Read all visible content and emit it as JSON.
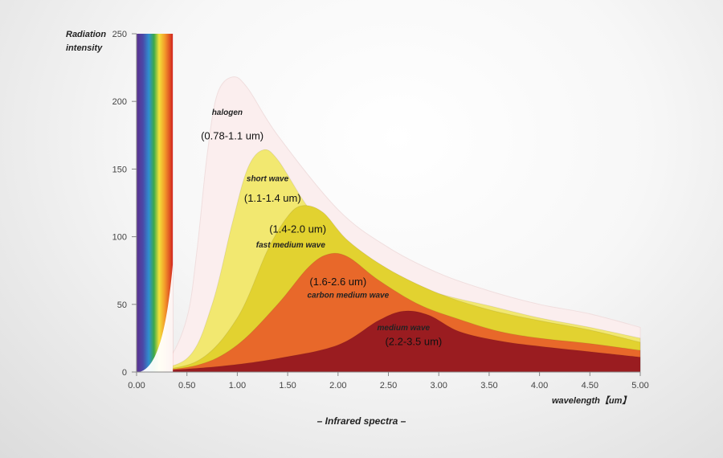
{
  "chart_data": {
    "type": "area",
    "title": "",
    "caption": "– Infrared spectra –",
    "xlabel": "wavelength【um】",
    "ylabel_line1": "Radiation",
    "ylabel_line2": "intensity",
    "xlim": [
      0,
      5
    ],
    "ylim": [
      0,
      250
    ],
    "xticks": [
      "0.00",
      "0.50",
      "1.00",
      "1.50",
      "2.00",
      "2.50",
      "3.00",
      "3.50",
      "4.00",
      "4.50",
      "5.00"
    ],
    "yticks": [
      "0",
      "50",
      "100",
      "150",
      "200",
      "250"
    ],
    "visible_spectrum": {
      "x_start": 0.0,
      "x_end": 0.36
    },
    "series": [
      {
        "label": "halogen",
        "range": "(0.78-1.1 um)",
        "color": "#fbeeee",
        "points": [
          [
            0,
            0
          ],
          [
            0.3,
            8
          ],
          [
            0.5,
            40
          ],
          [
            0.6,
            90
          ],
          [
            0.7,
            160
          ],
          [
            0.8,
            205
          ],
          [
            0.95,
            218
          ],
          [
            1.1,
            210
          ],
          [
            1.4,
            175
          ],
          [
            2.0,
            120
          ],
          [
            2.5,
            92
          ],
          [
            3.0,
            73
          ],
          [
            3.5,
            60
          ],
          [
            4.0,
            50
          ],
          [
            4.5,
            43
          ],
          [
            5.0,
            33
          ]
        ]
      },
      {
        "label": "short wave",
        "range": "(1.1-1.4 um)",
        "color": "#f2e870",
        "points": [
          [
            0,
            0
          ],
          [
            0.5,
            10
          ],
          [
            0.75,
            50
          ],
          [
            0.95,
            110
          ],
          [
            1.1,
            150
          ],
          [
            1.25,
            164
          ],
          [
            1.4,
            157
          ],
          [
            1.7,
            122
          ],
          [
            2.0,
            97
          ],
          [
            2.5,
            72
          ],
          [
            3.0,
            58
          ],
          [
            3.5,
            49
          ],
          [
            4.0,
            40
          ],
          [
            4.5,
            33
          ],
          [
            5.0,
            25
          ]
        ]
      },
      {
        "label": "fast medium wave",
        "range": "(1.4-2.0 um)",
        "color": "#e2d230",
        "points": [
          [
            0,
            0
          ],
          [
            0.6,
            8
          ],
          [
            1.0,
            40
          ],
          [
            1.3,
            90
          ],
          [
            1.5,
            115
          ],
          [
            1.65,
            123
          ],
          [
            1.85,
            118
          ],
          [
            2.1,
            97
          ],
          [
            2.5,
            76
          ],
          [
            3.0,
            58
          ],
          [
            3.5,
            46
          ],
          [
            4.0,
            38
          ],
          [
            4.5,
            31
          ],
          [
            5.0,
            22
          ]
        ]
      },
      {
        "label": "carbon medium wave",
        "range": "(1.6-2.6 um)",
        "color": "#e8682a",
        "points": [
          [
            0,
            0
          ],
          [
            0.6,
            5
          ],
          [
            1.0,
            20
          ],
          [
            1.4,
            50
          ],
          [
            1.7,
            77
          ],
          [
            1.9,
            87
          ],
          [
            2.1,
            85
          ],
          [
            2.4,
            68
          ],
          [
            2.8,
            50
          ],
          [
            3.2,
            39
          ],
          [
            3.6,
            30
          ],
          [
            4.0,
            25
          ],
          [
            4.5,
            21
          ],
          [
            5.0,
            16
          ]
        ]
      },
      {
        "label": "medium wave",
        "range": "(2.2-3.5 um)",
        "color": "#9a1c20",
        "points": [
          [
            0,
            0
          ],
          [
            0.8,
            4
          ],
          [
            1.4,
            10
          ],
          [
            2.0,
            20
          ],
          [
            2.4,
            38
          ],
          [
            2.65,
            45
          ],
          [
            2.9,
            42
          ],
          [
            3.2,
            30
          ],
          [
            3.6,
            23
          ],
          [
            4.0,
            19
          ],
          [
            4.5,
            15
          ],
          [
            5.0,
            11
          ]
        ]
      }
    ]
  }
}
